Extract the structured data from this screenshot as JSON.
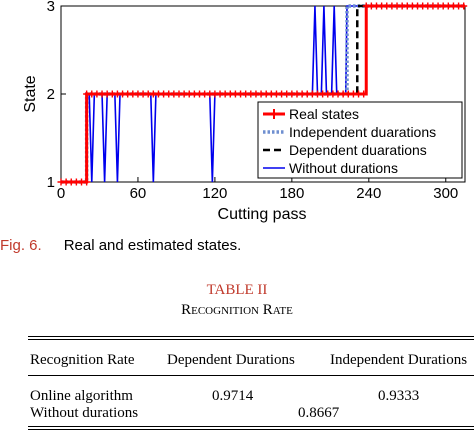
{
  "chart_data": {
    "type": "line",
    "xlabel": "Cutting pass",
    "ylabel": "State",
    "xlim": [
      0,
      315
    ],
    "ylim": [
      1,
      3
    ],
    "xticks": [
      0,
      60,
      120,
      180,
      240,
      300
    ],
    "yticks": [
      1,
      2,
      3
    ],
    "legend_position": "inside-right",
    "series": [
      {
        "name": "Real states",
        "color": "#ff0000",
        "marker": "plus",
        "x": [
          0,
          20,
          20,
          238,
          238,
          315
        ],
        "y": [
          1,
          1,
          2,
          2,
          3,
          3
        ]
      },
      {
        "name": "Independent duarations",
        "color": "#6f8fd0",
        "dash": "dotted",
        "x": [
          0,
          20,
          20,
          223,
          223,
          315
        ],
        "y": [
          1,
          1,
          2,
          2,
          3,
          3
        ]
      },
      {
        "name": "Dependent duarations",
        "color": "#000000",
        "dash": "dashed",
        "x": [
          0,
          20,
          20,
          231,
          231,
          315
        ],
        "y": [
          1,
          1,
          2,
          2,
          3,
          3
        ]
      },
      {
        "name": "Without durations",
        "color": "#0000ee",
        "dash": "solid",
        "x": [
          0,
          20,
          20,
          22,
          24,
          26,
          26,
          32,
          34,
          36,
          36,
          42,
          44,
          46,
          46,
          70,
          72,
          74,
          74,
          116,
          118,
          120,
          120,
          196,
          198,
          200,
          200,
          203,
          205,
          207,
          207,
          211,
          213,
          215,
          215,
          222,
          223,
          223,
          315
        ],
        "y": [
          1,
          1,
          2,
          2,
          1,
          2,
          2,
          2,
          1,
          2,
          2,
          2,
          1,
          2,
          2,
          2,
          1,
          2,
          2,
          2,
          1,
          2,
          2,
          2,
          3,
          2,
          2,
          2,
          3,
          2,
          2,
          2,
          3,
          2,
          2,
          2,
          3,
          3,
          3
        ]
      }
    ]
  },
  "figure": {
    "label": "Fig. 6.",
    "caption": "Real and estimated states."
  },
  "table": {
    "label": "TABLE II",
    "title": "Recognition Rate",
    "headers": [
      "Recognition Rate",
      "Dependent Durations",
      "Independent Durations"
    ],
    "rows": [
      [
        "Online algorithm",
        "0.9714",
        "0.9333"
      ],
      [
        "Without durations",
        "0.8667",
        ""
      ]
    ]
  }
}
